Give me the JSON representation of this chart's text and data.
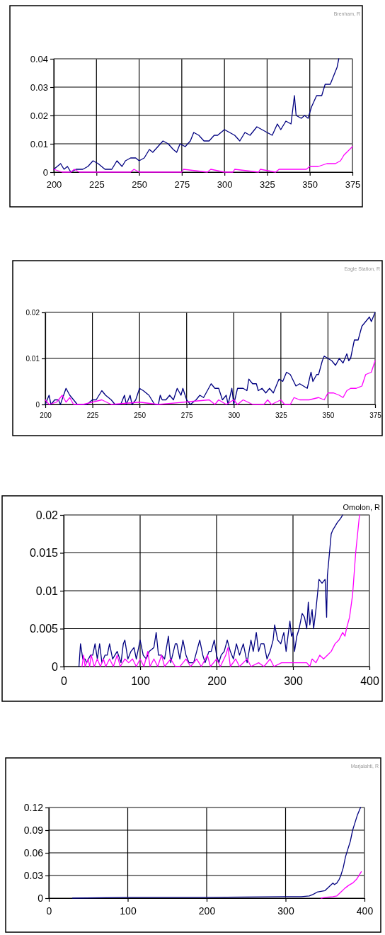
{
  "chart_data": [
    {
      "type": "line",
      "title": "Brenham, R",
      "xlim": [
        200,
        375
      ],
      "xticks": [
        200,
        225,
        250,
        275,
        300,
        325,
        350,
        375
      ],
      "ylim": [
        0,
        0.04
      ],
      "yticks": [
        0,
        0.01,
        0.02,
        0.03,
        0.04
      ],
      "grid": true,
      "series": [
        {
          "color": "#000080",
          "x": [
            200,
            204,
            206,
            208,
            210,
            213,
            217,
            220,
            223,
            226,
            230,
            234,
            237,
            240,
            242,
            245,
            248,
            250,
            253,
            256,
            258,
            261,
            264,
            267,
            270,
            272,
            274,
            277,
            280,
            282,
            285,
            288,
            291,
            294,
            296,
            300,
            303,
            306,
            309,
            312,
            315,
            319,
            322,
            325,
            328,
            331,
            333,
            336,
            339,
            341,
            342,
            345,
            347,
            349,
            351,
            354,
            357,
            359,
            362,
            364,
            366,
            367
          ],
          "values": [
            0.001,
            0.003,
            0.001,
            0.002,
            0,
            0.001,
            0.001,
            0.002,
            0.004,
            0.003,
            0.001,
            0.001,
            0.004,
            0.002,
            0.004,
            0.005,
            0.005,
            0.004,
            0.005,
            0.008,
            0.007,
            0.009,
            0.011,
            0.01,
            0.008,
            0.007,
            0.01,
            0.009,
            0.011,
            0.014,
            0.013,
            0.011,
            0.011,
            0.013,
            0.013,
            0.015,
            0.014,
            0.013,
            0.011,
            0.014,
            0.013,
            0.016,
            0.015,
            0.014,
            0.013,
            0.017,
            0.015,
            0.018,
            0.017,
            0.027,
            0.02,
            0.019,
            0.02,
            0.019,
            0.023,
            0.027,
            0.027,
            0.031,
            0.031,
            0.034,
            0.037,
            0.04
          ]
        },
        {
          "color": "#ff00ff",
          "x": [
            200,
            205,
            210,
            212,
            215,
            245,
            247,
            250,
            275,
            276,
            290,
            292,
            300,
            305,
            306,
            320,
            321,
            330,
            332,
            335,
            340,
            345,
            348,
            350,
            355,
            360,
            365,
            368,
            370,
            375
          ],
          "values": [
            0.001,
            0,
            0,
            0.001,
            0,
            0,
            0.001,
            0,
            0,
            0.001,
            0,
            0.001,
            0,
            0,
            0.001,
            0,
            0.001,
            0,
            0.001,
            0.001,
            0.001,
            0.001,
            0.001,
            0.002,
            0.002,
            0.003,
            0.003,
            0.004,
            0.006,
            0.009
          ]
        }
      ]
    },
    {
      "type": "line",
      "title": "Eagle Station, R",
      "xlim": [
        200,
        375
      ],
      "xticks": [
        200,
        225,
        250,
        275,
        300,
        325,
        350,
        375
      ],
      "ylim": [
        0,
        0.02
      ],
      "yticks": [
        0,
        0.01,
        0.02
      ],
      "grid": true,
      "series": [
        {
          "color": "#000080",
          "x": [
            200,
            202,
            203,
            205,
            207,
            208,
            211,
            213,
            215,
            217,
            220,
            222,
            225,
            227,
            230,
            232,
            235,
            237,
            240,
            242,
            243,
            245,
            246,
            248,
            250,
            252,
            255,
            258,
            260,
            261,
            262,
            264,
            266,
            268,
            270,
            272,
            273,
            275,
            277,
            280,
            282,
            284,
            286,
            288,
            290,
            292,
            294,
            296,
            297,
            299,
            300,
            302,
            305,
            307,
            308,
            310,
            312,
            313,
            315,
            317,
            319,
            321,
            323,
            324,
            326,
            328,
            330,
            333,
            335,
            337,
            339,
            341,
            342,
            344,
            345,
            347,
            348,
            350,
            352,
            354,
            356,
            358,
            360,
            361,
            362,
            364,
            366,
            368,
            370,
            372,
            373,
            375
          ],
          "values": [
            0,
            0.002,
            0,
            0.001,
            0.001,
            0,
            0.0035,
            0.002,
            0.001,
            0,
            0,
            0,
            0.001,
            0.001,
            0.003,
            0.002,
            0.001,
            0,
            0,
            0.002,
            0,
            0.002,
            0,
            0.001,
            0.0035,
            0.003,
            0.002,
            0,
            0,
            0.002,
            0.001,
            0.001,
            0.002,
            0.001,
            0.0035,
            0.002,
            0.0035,
            0.001,
            0,
            0.001,
            0.002,
            0.0015,
            0.003,
            0.0045,
            0.0035,
            0.0035,
            0.001,
            0.002,
            0,
            0.0035,
            0,
            0.0035,
            0.0035,
            0.003,
            0.0055,
            0.0045,
            0.0045,
            0.003,
            0.0035,
            0.0025,
            0.0035,
            0.0025,
            0.0045,
            0.0055,
            0.005,
            0.007,
            0.0065,
            0.004,
            0.0045,
            0.004,
            0.0035,
            0.007,
            0.005,
            0.0065,
            0.0065,
            0.0095,
            0.0105,
            0.01,
            0.0095,
            0.0085,
            0.01,
            0.009,
            0.011,
            0.0095,
            0.01,
            0.014,
            0.014,
            0.017,
            0.018,
            0.019,
            0.018,
            0.02
          ]
        },
        {
          "color": "#ff00ff",
          "x": [
            200,
            202,
            206,
            209,
            211,
            213,
            215,
            220,
            225,
            230,
            235,
            250,
            260,
            287,
            290,
            292,
            296,
            300,
            302,
            305,
            310,
            316,
            318,
            320,
            325,
            327,
            330,
            332,
            335,
            340,
            345,
            348,
            350,
            353,
            356,
            358,
            360,
            362,
            365,
            368,
            370,
            373,
            375
          ],
          "values": [
            0.001,
            0,
            0.0005,
            0.002,
            0.0005,
            0.0015,
            0,
            0,
            0.0005,
            0.001,
            0,
            0.0005,
            0,
            0.001,
            0,
            0.001,
            0,
            0.001,
            0,
            0.001,
            0,
            0,
            0.001,
            0,
            0.001,
            0,
            0,
            0.0015,
            0.001,
            0.001,
            0.0015,
            0.001,
            0.0025,
            0.0025,
            0.002,
            0.0015,
            0.003,
            0.0035,
            0.0035,
            0.004,
            0.0065,
            0.007,
            0.0095
          ]
        }
      ]
    },
    {
      "type": "line",
      "title": "Omolon, R",
      "xlim": [
        0,
        400
      ],
      "xticks": [
        0,
        100,
        200,
        300,
        400
      ],
      "ylim": [
        0,
        0.02
      ],
      "yticks": [
        0,
        0.005,
        0.01,
        0.015,
        0.02
      ],
      "grid": true,
      "series": [
        {
          "color": "#000080",
          "x": [
            20,
            22,
            25,
            28,
            30,
            35,
            38,
            41,
            44,
            47,
            50,
            54,
            57,
            60,
            64,
            70,
            75,
            78,
            80,
            84,
            88,
            92,
            95,
            100,
            104,
            108,
            112,
            118,
            121,
            124,
            128,
            132,
            137,
            140,
            146,
            148,
            152,
            156,
            160,
            164,
            170,
            174,
            178,
            182,
            185,
            190,
            193,
            197,
            200,
            203,
            206,
            210,
            214,
            218,
            222,
            226,
            230,
            235,
            240,
            245,
            248,
            252,
            255,
            258,
            262,
            266,
            270,
            274,
            276,
            280,
            284,
            288,
            291,
            294,
            296,
            298,
            300,
            302,
            305,
            308,
            312,
            315,
            318,
            320,
            322,
            325,
            327,
            330,
            334,
            338,
            342,
            344,
            345,
            350,
            352,
            355,
            358,
            362,
            365
          ],
          "values": [
            0,
            0.003,
            0.001,
            0.001,
            0.0005,
            0.0015,
            0.0015,
            0.003,
            0.001,
            0.003,
            0.0005,
            0.0015,
            0.0015,
            0.003,
            0.001,
            0.002,
            0.0005,
            0.003,
            0.0035,
            0.001,
            0.002,
            0.0025,
            0.001,
            0.0035,
            0.0015,
            0.001,
            0.002,
            0.0025,
            0.0045,
            0.0015,
            0.0015,
            0.001,
            0.004,
            0.0005,
            0.003,
            0.003,
            0.001,
            0.0035,
            0.0015,
            0.0005,
            0.0005,
            0.002,
            0.0035,
            0.0015,
            0.0005,
            0.002,
            0.002,
            0.0035,
            0.0015,
            0.0005,
            0.0015,
            0.002,
            0.0035,
            0.002,
            0.001,
            0.003,
            0.0015,
            0.003,
            0.0005,
            0.0035,
            0.002,
            0.0045,
            0.002,
            0.003,
            0.003,
            0.001,
            0.002,
            0.0035,
            0.0055,
            0.0035,
            0.003,
            0.0045,
            0.002,
            0.0045,
            0.006,
            0.004,
            0.0045,
            0.002,
            0.004,
            0.005,
            0.007,
            0.0065,
            0.005,
            0.0085,
            0.0055,
            0.0075,
            0.005,
            0.0075,
            0.0115,
            0.011,
            0.0115,
            0.0065,
            0.012,
            0.0175,
            0.018,
            0.0185,
            0.019,
            0.0195,
            0.02
          ]
        },
        {
          "color": "#ff00ff",
          "x": [
            24,
            26,
            28,
            32,
            34,
            36,
            40,
            44,
            48,
            52,
            55,
            60,
            65,
            70,
            74,
            80,
            85,
            90,
            95,
            100,
            105,
            110,
            113,
            118,
            123,
            128,
            132,
            140,
            146,
            152,
            160,
            166,
            174,
            180,
            188,
            192,
            200,
            205,
            212,
            215,
            218,
            225,
            230,
            240,
            245,
            255,
            262,
            270,
            275,
            285,
            292,
            300,
            310,
            318,
            322,
            325,
            330,
            335,
            340,
            345,
            350,
            355,
            360,
            365,
            368,
            370,
            374,
            378,
            382,
            387
          ],
          "values": [
            0,
            0.0015,
            0,
            0.001,
            0,
            0.0015,
            0,
            0.001,
            0,
            0.001,
            0,
            0.001,
            0,
            0.0015,
            0,
            0.001,
            0.0005,
            0.001,
            0,
            0.001,
            0,
            0.002,
            0,
            0.001,
            0,
            0.0015,
            0,
            0.001,
            0,
            0,
            0.001,
            0,
            0.001,
            0,
            0.0015,
            0,
            0.001,
            0,
            0.0015,
            0.0025,
            0,
            0.001,
            0,
            0.001,
            0,
            0.0005,
            0,
            0.001,
            0,
            0.0005,
            0.0005,
            0.0005,
            0.0005,
            0.0005,
            0,
            0.001,
            0.0005,
            0.0015,
            0.001,
            0.0015,
            0.002,
            0.003,
            0.0035,
            0.0045,
            0.004,
            0.005,
            0.0065,
            0.0095,
            0.015,
            0.02
          ]
        }
      ]
    },
    {
      "type": "line",
      "title": "Marjalahti, R",
      "xlim": [
        0,
        400
      ],
      "xticks": [
        0,
        100,
        200,
        300,
        400
      ],
      "ylim": [
        0,
        0.12
      ],
      "yticks": [
        0,
        0.03,
        0.06,
        0.09,
        0.12
      ],
      "grid": true,
      "series": [
        {
          "color": "#000080",
          "x": [
            30,
            100,
            200,
            300,
            320,
            330,
            335,
            340,
            345,
            350,
            355,
            360,
            362,
            365,
            368,
            370,
            373,
            376,
            379,
            382,
            385,
            388,
            391,
            395
          ],
          "values": [
            0,
            0.001,
            0.001,
            0.002,
            0.002,
            0.003,
            0.005,
            0.008,
            0.009,
            0.01,
            0.015,
            0.02,
            0.018,
            0.02,
            0.025,
            0.03,
            0.04,
            0.055,
            0.065,
            0.075,
            0.09,
            0.1,
            0.11,
            0.12
          ]
        },
        {
          "color": "#ff00ff",
          "x": [
            345,
            350,
            360,
            365,
            370,
            375,
            380,
            385,
            390,
            396
          ],
          "values": [
            0,
            0.001,
            0.002,
            0.003,
            0.008,
            0.013,
            0.017,
            0.02,
            0.025,
            0.035
          ]
        }
      ]
    }
  ]
}
